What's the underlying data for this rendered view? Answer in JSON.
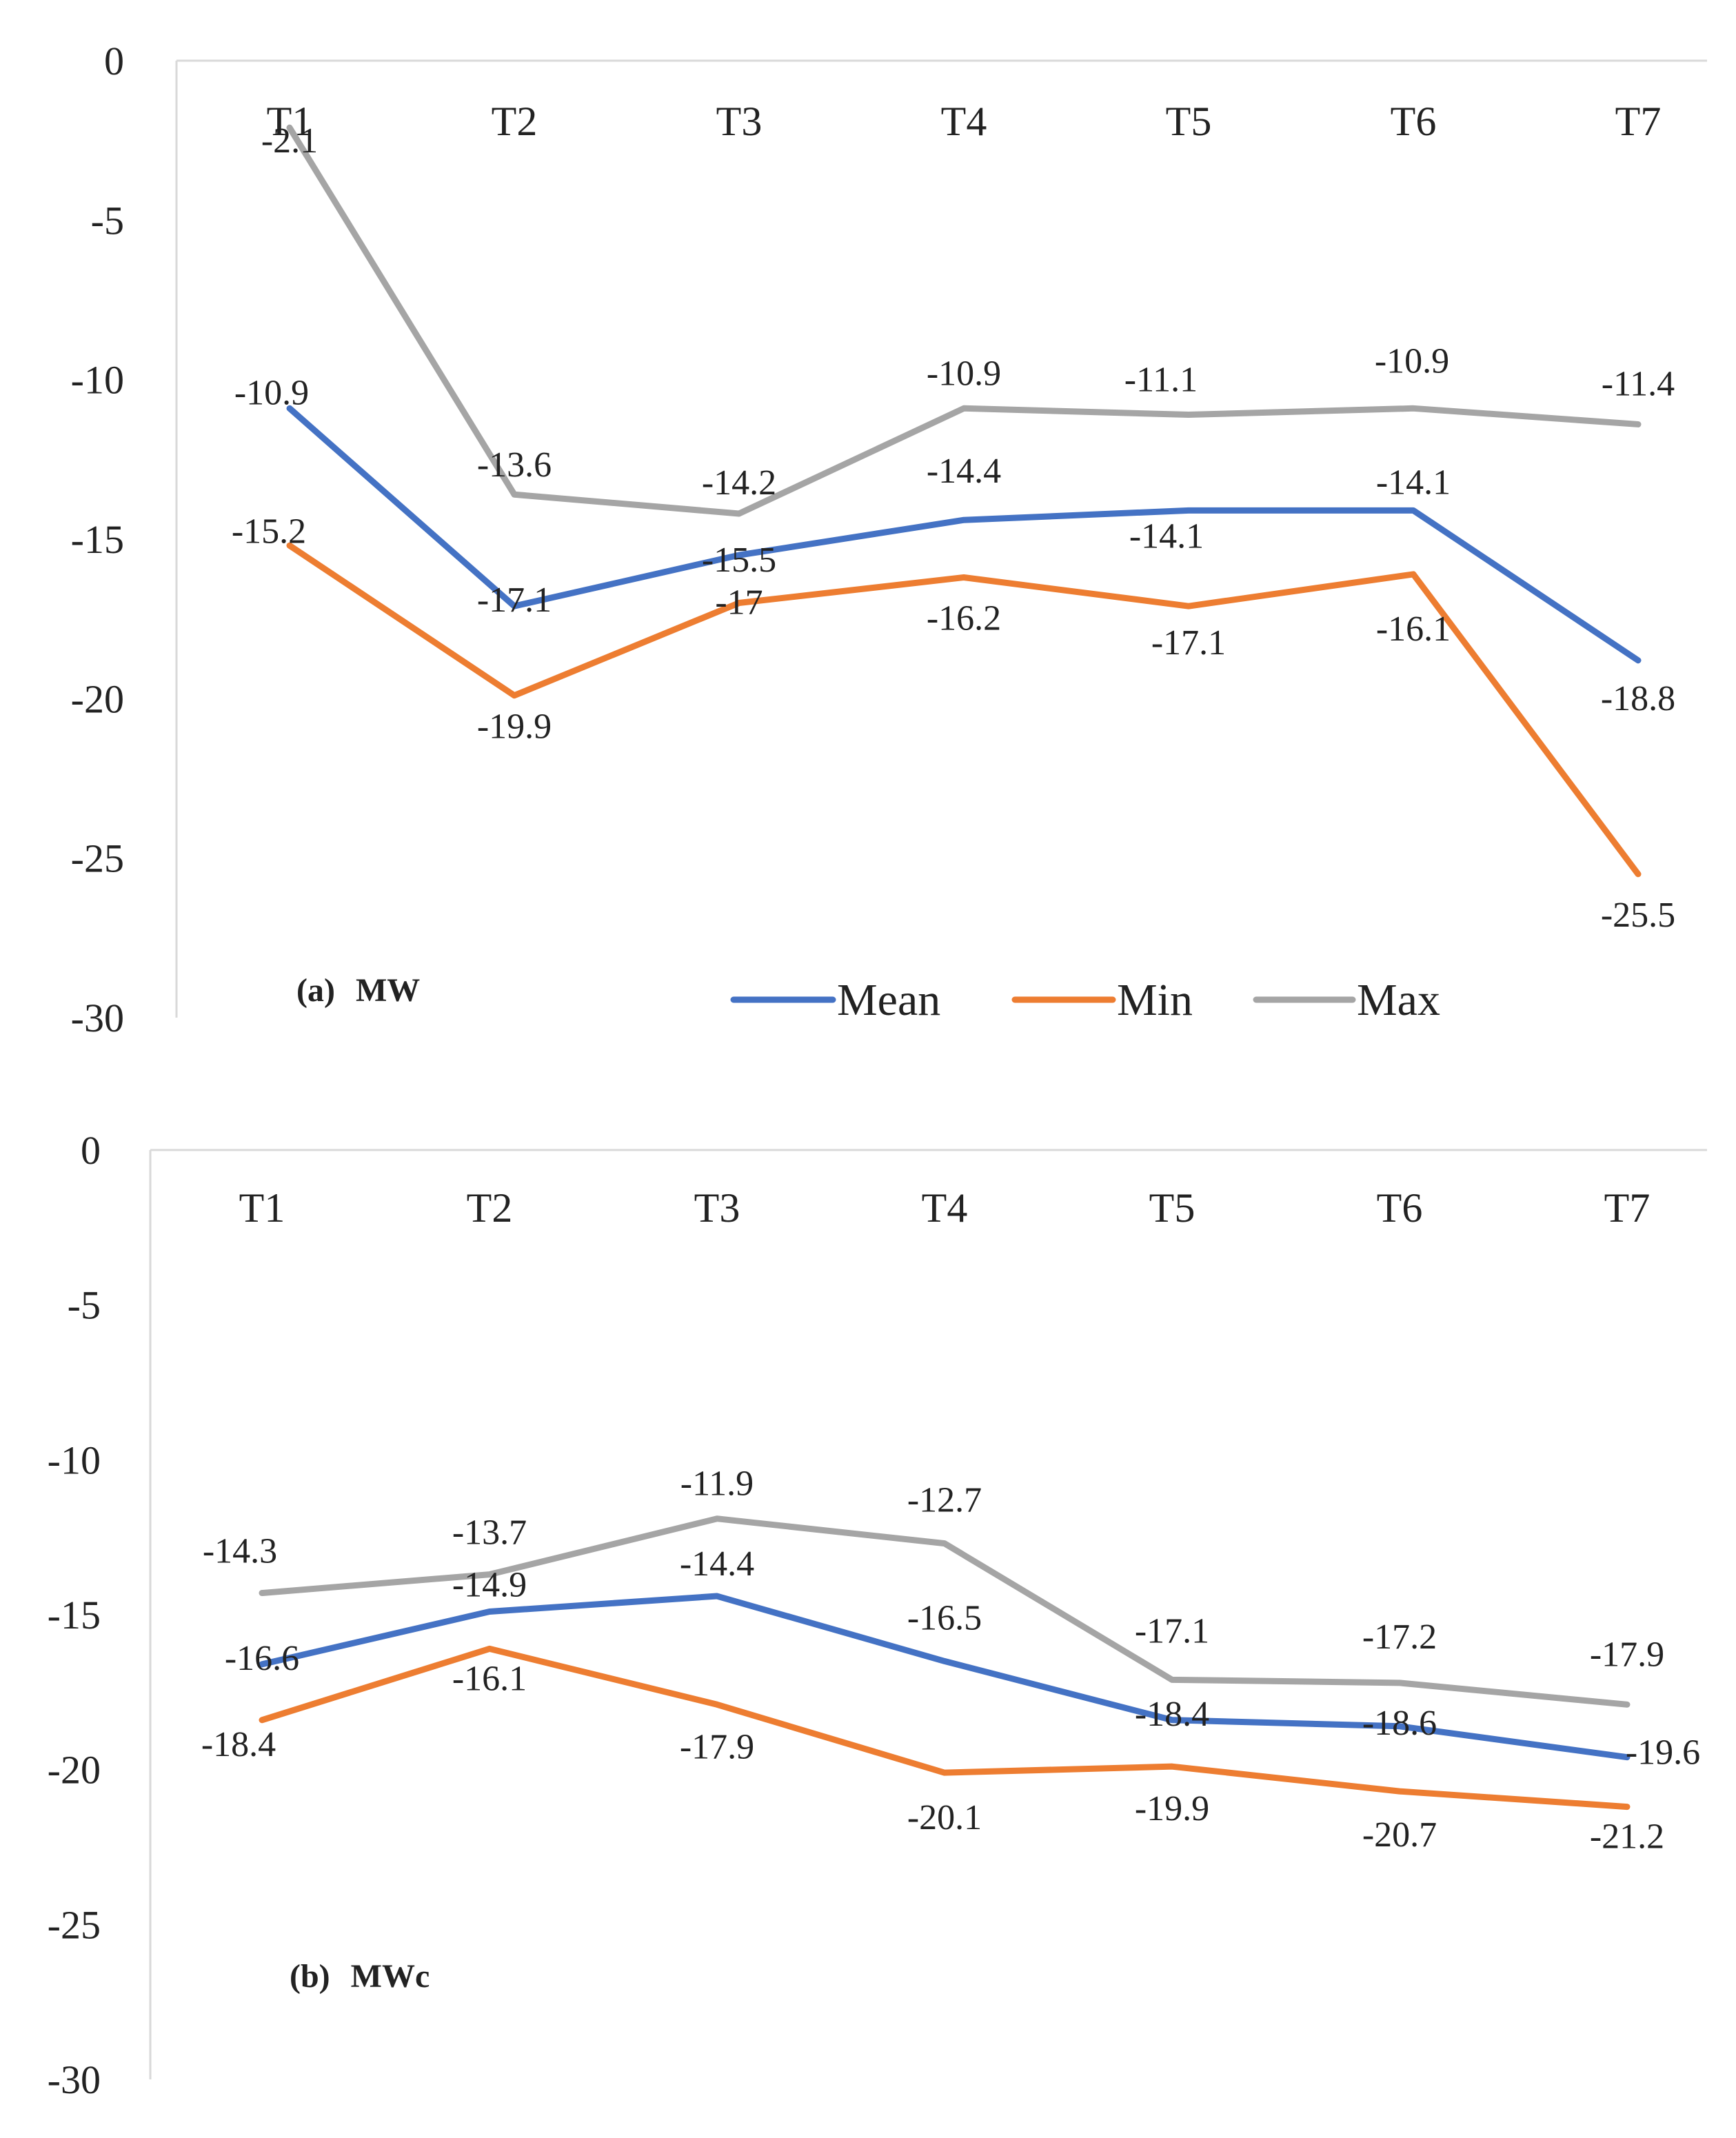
{
  "chart_data": [
    {
      "type": "line",
      "panel": "a",
      "label_prefix": "(a)",
      "label_name": "MW",
      "categories": [
        "T1",
        "T2",
        "T3",
        "T4",
        "T5",
        "T6",
        "T7"
      ],
      "ylim": [
        -30,
        0
      ],
      "yticks": [
        0,
        -5,
        -10,
        -15,
        -20,
        -25,
        -30
      ],
      "grid": false,
      "legend_position": "bottom-right",
      "series": [
        {
          "name": "Mean",
          "color": "#4472C4",
          "values": [
            -10.9,
            -17.1,
            -15.5,
            -14.4,
            -14.1,
            -14.1,
            -18.8
          ],
          "labels": [
            "-10.9",
            "-17.1",
            "-15.5",
            "-14.4",
            "-14.1",
            "-14.1",
            "-18.8"
          ]
        },
        {
          "name": "Min",
          "color": "#ED7D31",
          "values": [
            -15.2,
            -19.9,
            -17,
            -16.2,
            -17.1,
            -16.1,
            -25.5
          ],
          "labels": [
            "-15.2",
            "-19.9",
            "-17",
            "-16.2",
            "-17.1",
            "-16.1",
            "-25.5"
          ]
        },
        {
          "name": "Max",
          "color": "#A5A5A5",
          "values": [
            -2.1,
            -13.6,
            -14.2,
            -10.9,
            -11.1,
            -10.9,
            -11.4
          ],
          "labels": [
            "-2.1",
            "-13.6",
            "-14.2",
            "-10.9",
            "-11.1",
            "-10.9",
            "-11.4"
          ]
        }
      ]
    },
    {
      "type": "line",
      "panel": "b",
      "label_prefix": "(b)",
      "label_name": "MWc",
      "categories": [
        "T1",
        "T2",
        "T3",
        "T4",
        "T5",
        "T6",
        "T7"
      ],
      "ylim": [
        -30,
        0
      ],
      "yticks": [
        0,
        -5,
        -10,
        -15,
        -20,
        -25,
        -30
      ],
      "grid": false,
      "legend_position": "none",
      "series": [
        {
          "name": "Mean",
          "color": "#4472C4",
          "values": [
            -16.6,
            -14.9,
            -14.4,
            -16.5,
            -18.4,
            -18.6,
            -19.6
          ],
          "labels": [
            "-16.6",
            "-14.9",
            "-14.4",
            "-16.5",
            "-18.4",
            "-18.6",
            "-19.6"
          ]
        },
        {
          "name": "Min",
          "color": "#ED7D31",
          "values": [
            -18.4,
            -16.1,
            -17.9,
            -20.1,
            -19.9,
            -20.7,
            -21.2
          ],
          "labels": [
            "-18.4",
            "-16.1",
            "-17.9",
            "-20.1",
            "-19.9",
            "-20.7",
            "-21.2"
          ]
        },
        {
          "name": "Max",
          "color": "#A5A5A5",
          "values": [
            -14.3,
            -13.7,
            -11.9,
            -12.7,
            -17.1,
            -17.2,
            -17.9
          ],
          "labels": [
            "-14.3",
            "-13.7",
            "-11.9",
            "-12.7",
            "-17.1",
            "-17.2",
            "-17.9"
          ]
        }
      ]
    }
  ]
}
